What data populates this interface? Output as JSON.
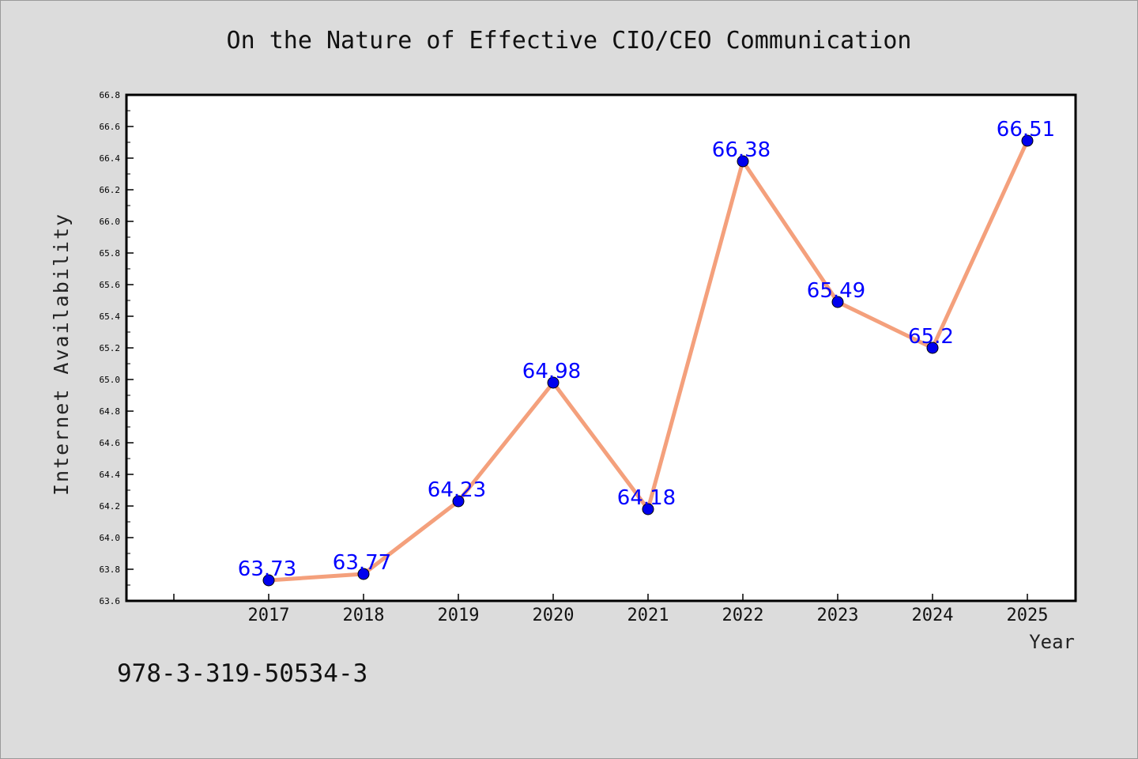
{
  "title": "On the Nature of Effective CIO/CEO Communication",
  "footer_code": "978-3-319-50534-3",
  "chart_data": {
    "type": "line",
    "title": "On the Nature of Effective CIO/CEO Communication",
    "xlabel": "Year",
    "ylabel": "Internet Availability",
    "categories": [
      "2017",
      "2018",
      "2019",
      "2020",
      "2021",
      "2022",
      "2023",
      "2024",
      "2025"
    ],
    "series": [
      {
        "values": [
          63.73,
          63.77,
          64.23,
          64.98,
          64.18,
          66.38,
          65.49,
          65.2,
          66.51
        ],
        "data_labels": [
          "63.73",
          "63.77",
          "64.23",
          "64.98",
          "64.18",
          "66.38",
          "65.49",
          "65.2",
          "66.51"
        ]
      }
    ],
    "ylim": [
      63.6,
      66.8
    ],
    "y_ticks": [
      "63.6",
      "63.8",
      "64.0",
      "64.2",
      "64.4",
      "64.6",
      "64.8",
      "65.0",
      "65.2",
      "65.4",
      "65.6",
      "65.8",
      "66.0",
      "66.2",
      "66.4",
      "66.6",
      "66.8"
    ],
    "grid": false,
    "legend": "none",
    "colors": {
      "line": "#f4a07c",
      "marker": "#0000ee",
      "label": "#0000ff",
      "plot_background": "#ffffff",
      "figure_background": "#dcdcdc"
    }
  }
}
